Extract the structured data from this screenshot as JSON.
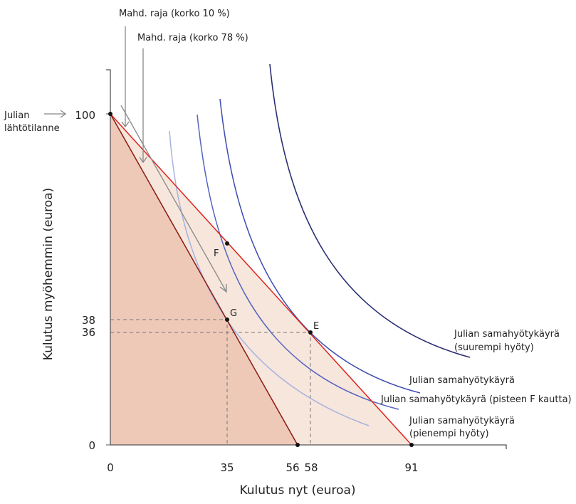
{
  "axes": {
    "xlabel": "Kulutus nyt (euroa)",
    "ylabel": "Kulutus myöhemmin (euroa)",
    "xticks": [
      "0",
      "35",
      "56",
      "58",
      "91"
    ],
    "yticks": [
      "0",
      "36",
      "38",
      "100"
    ]
  },
  "points": {
    "F": "F",
    "G": "G",
    "E": "E"
  },
  "labels": {
    "frontier_10": "Mahd. raja (korko 10 %)",
    "frontier_78": "Mahd. raja (korko 78 %)",
    "start_line1": "Julian",
    "start_line2": "lähtötilanne",
    "ic_high_1": "Julian samahyötykäyrä",
    "ic_high_2": "(suurempi hyöty)",
    "ic_mid": "Julian samahyötykäyrä",
    "ic_f": "Julian samahyötykäyrä (pisteen F kautta)",
    "ic_low_1": "Julian samahyötykäyrä",
    "ic_low_2": "(pienempi hyöty)"
  },
  "colors": {
    "frontier_10": "#e0231c",
    "frontier_78": "#8b1a12",
    "fill_dark": "#eec9b8",
    "fill_light": "#f6e6dc",
    "ic_high": "#2b2f73",
    "ic_mid": "#3d4cb0",
    "ic_f": "#5664c0",
    "ic_low": "#a7b2e0"
  }
}
